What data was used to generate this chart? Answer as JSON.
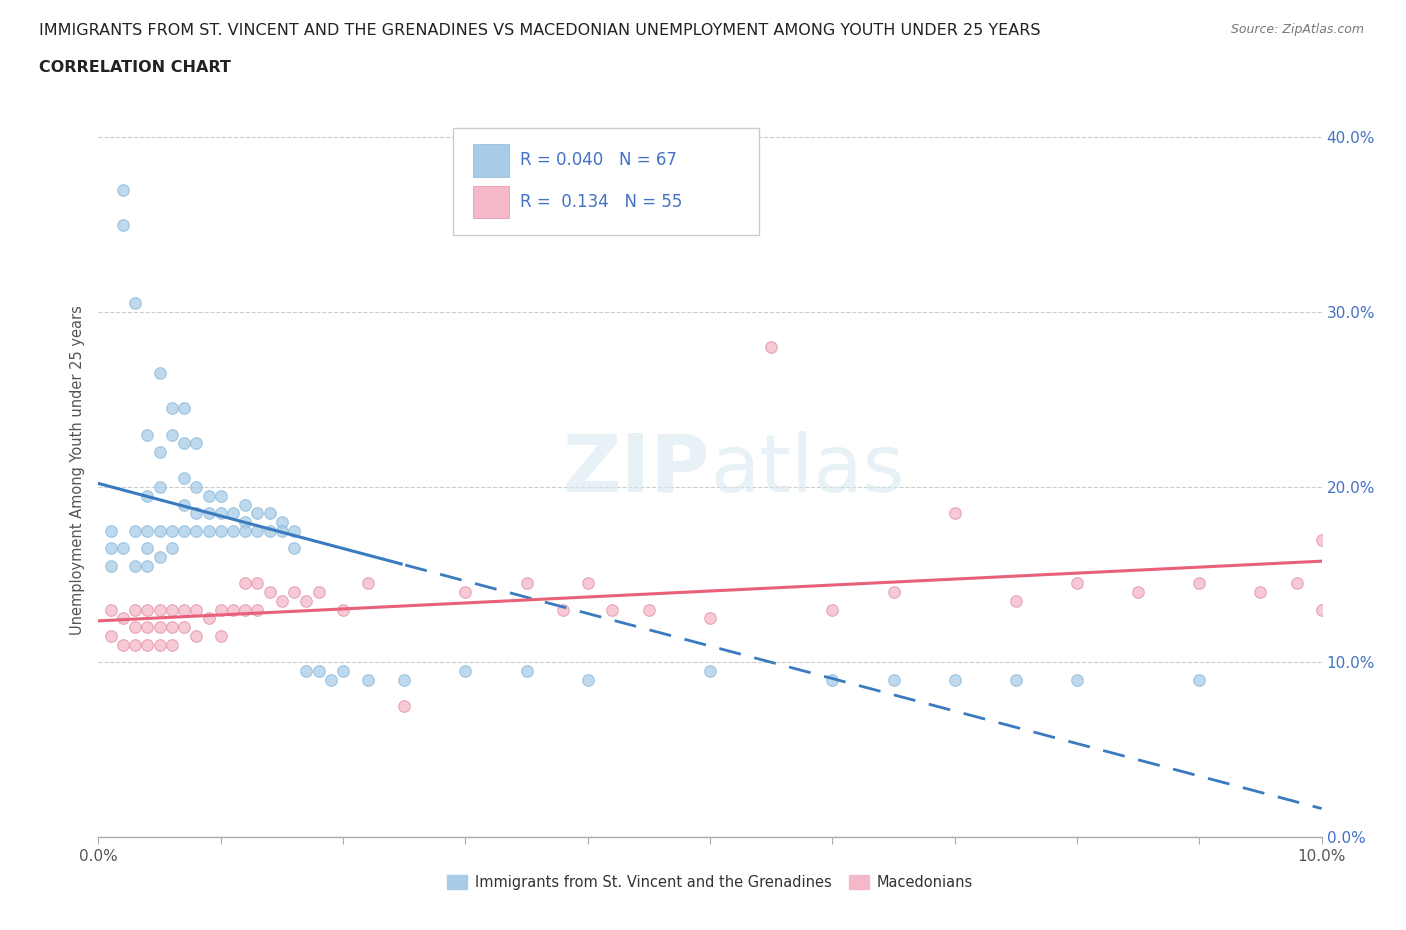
{
  "title_line1": "IMMIGRANTS FROM ST. VINCENT AND THE GRENADINES VS MACEDONIAN UNEMPLOYMENT AMONG YOUTH UNDER 25 YEARS",
  "title_line2": "CORRELATION CHART",
  "source_text": "Source: ZipAtlas.com",
  "ylabel": "Unemployment Among Youth under 25 years",
  "watermark": "ZIPatlas",
  "xlim": [
    0.0,
    0.1
  ],
  "ylim": [
    0.0,
    0.42
  ],
  "xticks": [
    0.0,
    0.01,
    0.02,
    0.03,
    0.04,
    0.05,
    0.06,
    0.07,
    0.08,
    0.09,
    0.1
  ],
  "yticks": [
    0.0,
    0.1,
    0.2,
    0.3,
    0.4
  ],
  "color_blue": "#a8cce8",
  "color_pink": "#f4b8c8",
  "color_blue_line": "#3a7abf",
  "color_pink_line": "#e8607a",
  "background_color": "#ffffff",
  "blue_x": [
    0.001,
    0.001,
    0.001,
    0.002,
    0.002,
    0.002,
    0.003,
    0.003,
    0.003,
    0.004,
    0.004,
    0.004,
    0.004,
    0.004,
    0.005,
    0.005,
    0.005,
    0.005,
    0.005,
    0.006,
    0.006,
    0.006,
    0.006,
    0.007,
    0.007,
    0.007,
    0.007,
    0.007,
    0.008,
    0.008,
    0.008,
    0.008,
    0.009,
    0.009,
    0.009,
    0.01,
    0.01,
    0.01,
    0.011,
    0.011,
    0.012,
    0.012,
    0.012,
    0.013,
    0.013,
    0.014,
    0.014,
    0.015,
    0.015,
    0.016,
    0.016,
    0.017,
    0.018,
    0.019,
    0.02,
    0.022,
    0.025,
    0.03,
    0.035,
    0.04,
    0.05,
    0.06,
    0.065,
    0.07,
    0.075,
    0.08,
    0.09
  ],
  "blue_y": [
    0.175,
    0.165,
    0.155,
    0.37,
    0.35,
    0.165,
    0.305,
    0.175,
    0.155,
    0.23,
    0.195,
    0.175,
    0.165,
    0.155,
    0.265,
    0.22,
    0.2,
    0.175,
    0.16,
    0.245,
    0.23,
    0.175,
    0.165,
    0.245,
    0.225,
    0.205,
    0.19,
    0.175,
    0.225,
    0.2,
    0.185,
    0.175,
    0.195,
    0.185,
    0.175,
    0.195,
    0.185,
    0.175,
    0.185,
    0.175,
    0.19,
    0.18,
    0.175,
    0.185,
    0.175,
    0.185,
    0.175,
    0.18,
    0.175,
    0.175,
    0.165,
    0.095,
    0.095,
    0.09,
    0.095,
    0.09,
    0.09,
    0.095,
    0.095,
    0.09,
    0.095,
    0.09,
    0.09,
    0.09,
    0.09,
    0.09,
    0.09
  ],
  "pink_x": [
    0.001,
    0.001,
    0.002,
    0.002,
    0.003,
    0.003,
    0.003,
    0.004,
    0.004,
    0.004,
    0.005,
    0.005,
    0.005,
    0.006,
    0.006,
    0.006,
    0.007,
    0.007,
    0.008,
    0.008,
    0.009,
    0.01,
    0.01,
    0.011,
    0.012,
    0.012,
    0.013,
    0.013,
    0.014,
    0.015,
    0.016,
    0.017,
    0.018,
    0.02,
    0.022,
    0.025,
    0.03,
    0.035,
    0.038,
    0.04,
    0.042,
    0.045,
    0.05,
    0.055,
    0.06,
    0.065,
    0.07,
    0.075,
    0.08,
    0.085,
    0.09,
    0.095,
    0.098,
    0.1,
    0.1
  ],
  "pink_y": [
    0.13,
    0.115,
    0.125,
    0.11,
    0.13,
    0.12,
    0.11,
    0.13,
    0.12,
    0.11,
    0.13,
    0.12,
    0.11,
    0.13,
    0.12,
    0.11,
    0.13,
    0.12,
    0.13,
    0.115,
    0.125,
    0.13,
    0.115,
    0.13,
    0.145,
    0.13,
    0.145,
    0.13,
    0.14,
    0.135,
    0.14,
    0.135,
    0.14,
    0.13,
    0.145,
    0.075,
    0.14,
    0.145,
    0.13,
    0.145,
    0.13,
    0.13,
    0.125,
    0.28,
    0.13,
    0.14,
    0.185,
    0.135,
    0.145,
    0.14,
    0.145,
    0.14,
    0.145,
    0.17,
    0.13
  ],
  "blue_line_solid_end": 0.025,
  "blue_line_start": 0.0,
  "blue_line_end": 0.1,
  "pink_line_start": 0.0,
  "pink_line_end": 0.1
}
